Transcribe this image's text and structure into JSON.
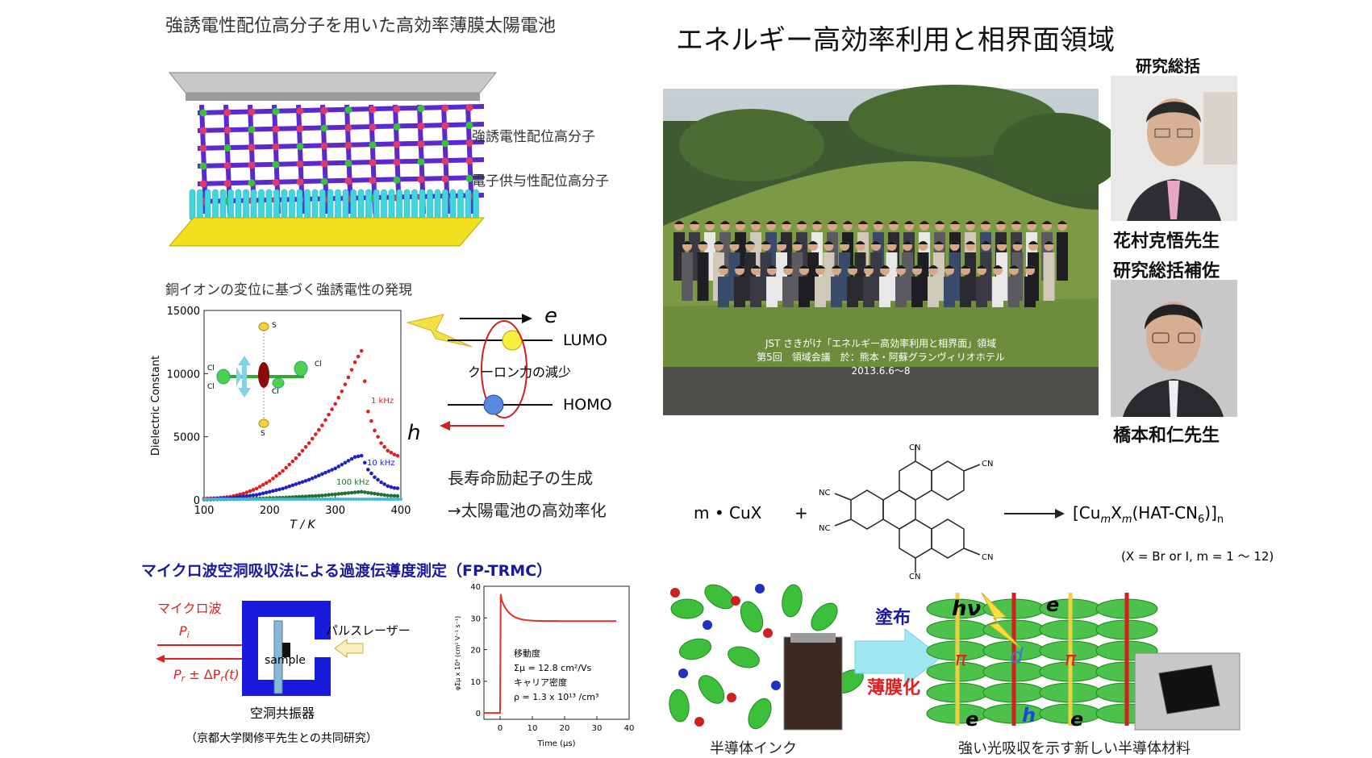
{
  "header": {
    "main_title": "エネルギー高効率利用と相界面領域",
    "top_left_title": "強誘電性配位高分子を用いた高効率薄膜太陽電池"
  },
  "structure": {
    "label_ferro": "強誘電性配位高分子",
    "label_donor": "電子供与性配位高分子"
  },
  "copper": {
    "title": "銅イオンの変位に基づく強誘電性の発現"
  },
  "dielectric_chart": {
    "ylabel": "Dielectric Constant",
    "xlabel": "T / K",
    "y_ticks": [
      "15000",
      "10000",
      "5000",
      "0"
    ],
    "x_ticks": [
      "100",
      "200",
      "300",
      "400"
    ],
    "series_labels": [
      "1 kHz",
      "10 kHz",
      "100 kHz"
    ],
    "atom_labels": [
      "S",
      "Cl",
      "Cl",
      "Cl",
      "Cl",
      "S"
    ]
  },
  "chart_data": {
    "type": "scatter",
    "xlabel": "T / K",
    "ylabel": "Dielectric Constant",
    "xlim": [
      100,
      400
    ],
    "ylim": [
      0,
      15000
    ],
    "series": [
      {
        "name": "1 kHz",
        "color": "#e02020",
        "x": [
          100,
          120,
          140,
          160,
          180,
          200,
          220,
          240,
          260,
          280,
          300,
          310,
          320,
          330,
          340,
          350,
          360,
          370,
          380,
          390,
          400
        ],
        "y": [
          120,
          150,
          250,
          500,
          900,
          1500,
          2300,
          3300,
          4500,
          5900,
          7600,
          8600,
          9700,
          10900,
          11800,
          7000,
          5500,
          4500,
          3900,
          3600,
          3400
        ]
      },
      {
        "name": "10 kHz",
        "color": "#2020c0",
        "x": [
          100,
          140,
          180,
          220,
          260,
          300,
          320,
          330,
          340,
          350,
          360,
          370,
          380,
          390,
          400
        ],
        "y": [
          60,
          150,
          400,
          900,
          1600,
          2500,
          3100,
          3400,
          3500,
          2400,
          1800,
          1400,
          1100,
          950,
          900
        ]
      },
      {
        "name": "100 kHz",
        "color": "#207030",
        "x": [
          100,
          160,
          220,
          280,
          320,
          340,
          360,
          380,
          400
        ],
        "y": [
          30,
          80,
          180,
          350,
          550,
          650,
          500,
          350,
          300
        ]
      }
    ]
  },
  "energy_diagram": {
    "e_label": "e",
    "h_label": "h",
    "lumo": "LUMO",
    "homo": "HOMO",
    "coulomb": "クーロン力の減少",
    "exciton": "長寿命励起子の生成",
    "efficiency": "→太陽電池の高効率化"
  },
  "fp_trmc": {
    "title": "マイクロ波空洞吸収法による過渡伝導度測定（FP-TRMC）",
    "microwave": "マイクロ波",
    "pi": "P",
    "pi_sub": "i",
    "pr": "P",
    "pr_sub": "r",
    "pr_tail": " ± ΔP",
    "pr_tail_sub": "r",
    "pr_end": "(t)",
    "sample": "sample",
    "pulse_laser": "パルスレーザー",
    "cavity": "空洞共振器",
    "collab": "（京都大学関修平先生との共同研究）"
  },
  "trmc_chart": {
    "ylabel": "φΣμ x 10⁴ (cm² V⁻¹ s⁻¹)",
    "xlabel": "Time (μs)",
    "y_ticks": [
      "40",
      "30",
      "20",
      "10",
      "0"
    ],
    "x_ticks": [
      "0",
      "10",
      "20",
      "30",
      "40"
    ],
    "mobility_label": "移動度",
    "mobility_value": "Σμ = 12.8 cm²/Vs",
    "carrier_label": "キャリア密度",
    "carrier_value": "ρ = 1.3 x 10¹³ /cm³"
  },
  "group_photo": {
    "caption_line1": "JST さきがけ「エネルギー高効率利用と相界面」領域",
    "caption_line2": "第5回　領域会議　於：熊本・阿蘇グランヴィリオホテル",
    "caption_line3": "2013.6.6〜8"
  },
  "supervisor": {
    "role": "研究総括",
    "name": "花村克悟先生"
  },
  "assistant": {
    "role": "研究総括補佐",
    "name": "橋本和仁先生"
  },
  "reaction": {
    "reactant1": "m • CuX",
    "plus": "+",
    "product": "[Cu",
    "product_m1": "m",
    "product_x": "X",
    "product_m2": "m",
    "product_hat": "(HAT-CN",
    "product_6": "6",
    "product_end": ")]",
    "product_n": "n",
    "condition": "(X = Br or I, m = 1 〜 12)",
    "cn_labels": [
      "CN",
      "CN",
      "NC",
      "NC",
      "CN",
      "CN"
    ]
  },
  "bottom_right": {
    "coating": "塗布",
    "thin_film": "薄膜化",
    "ink_label": "半導体インク",
    "material_label": "強い光吸収を示す新しい半導体材料",
    "hv": "hν",
    "e_top": "e",
    "d1": "d",
    "pi1": "π",
    "pi2": "π",
    "e_bottom1": "e",
    "h_bottom": "h",
    "e_bottom2": "e"
  },
  "colors": {
    "purple": "#5a2ad0",
    "cyan": "#3fd6e0",
    "green": "#3cc03c",
    "red": "#e02020",
    "blue": "#2020c0",
    "navy": "#1a1aa0",
    "trmc_red": "#e0302a"
  }
}
